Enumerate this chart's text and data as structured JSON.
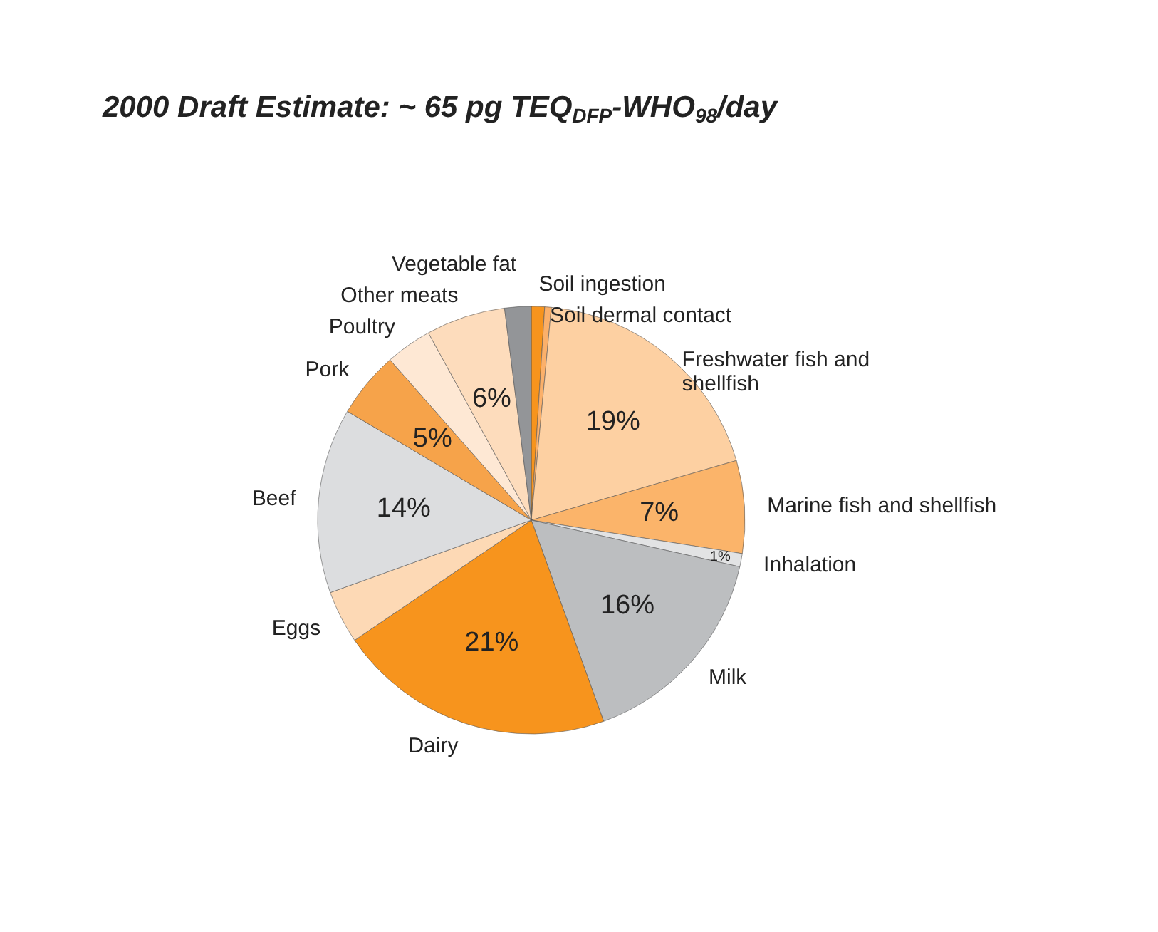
{
  "chart_data": {
    "type": "pie",
    "title": "2000 Draft Estimate: ~ 65 pg TEQ$_{DFP}$-WHO$_{98}$/day",
    "categories": [
      "Soil ingestion",
      "Soil dermal contact",
      "Freshwater fish and\nshellfish",
      "Marine fish and shellfish",
      "Inhalation",
      "Milk",
      "Dairy",
      "Eggs",
      "Beef",
      "Pork",
      "Poultry",
      "Other meats",
      "Vegetable fat"
    ],
    "values": [
      1,
      0.5,
      19,
      7,
      1,
      16,
      21,
      4,
      14,
      5,
      3.5,
      6,
      2
    ],
    "colors": [
      "#f7941d",
      "#fbb06a",
      "#fdd0a2",
      "#fbb46a",
      "#e2e3e4",
      "#bcbec0",
      "#f7941d",
      "#fdd9b5",
      "#dcdddf",
      "#f6a34a",
      "#fee8d4",
      "#fddcbc",
      "#939598"
    ],
    "value_labels": [
      null,
      null,
      "19%",
      "7%",
      "1%",
      "16%",
      "21%",
      null,
      "14%",
      "5%",
      null,
      "6%",
      null
    ]
  }
}
